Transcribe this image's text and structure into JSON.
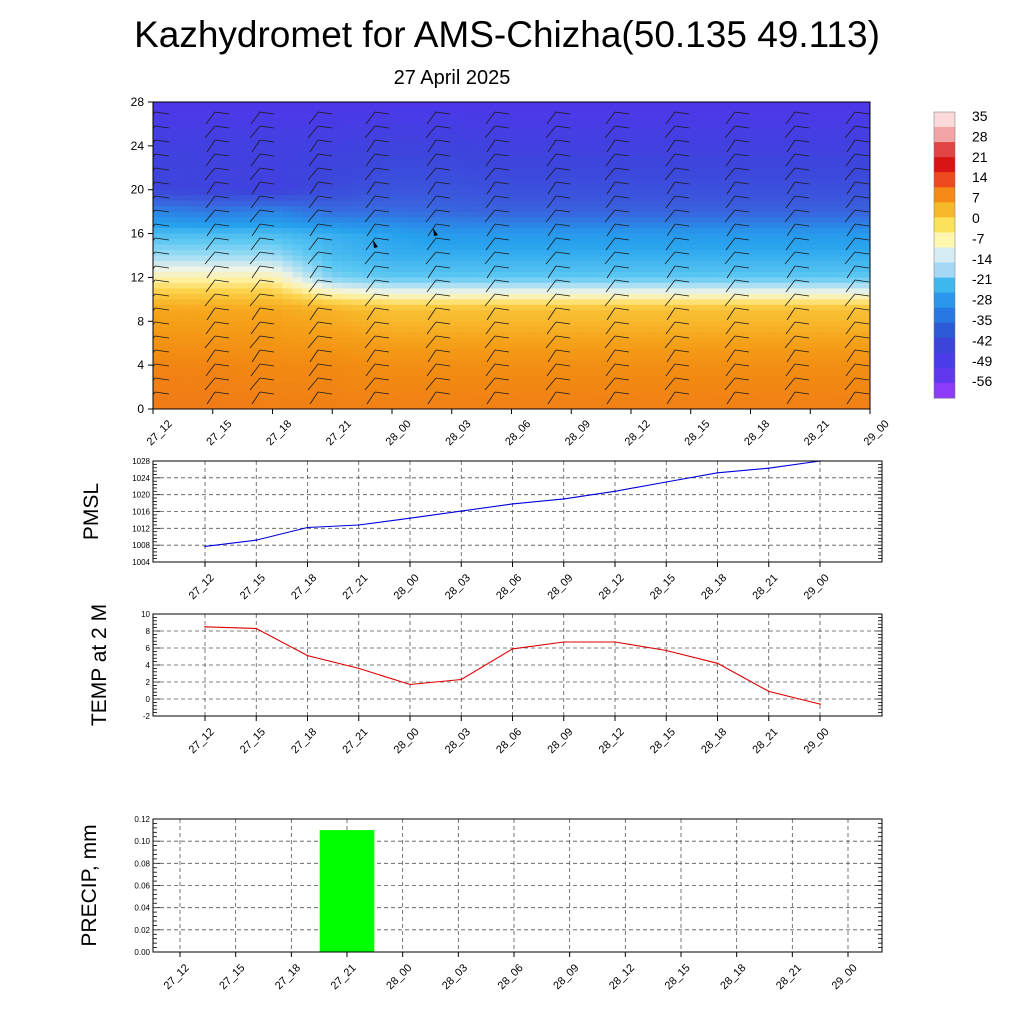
{
  "header": {
    "title": "Kazhydromet for AMS-Chizha(50.135 49.113)",
    "subtitle": "27 April 2025"
  },
  "colors": {
    "pmsl_line": "#0000dd",
    "temp_line": "#dd0000",
    "precip_bar": "#00ff00",
    "warm": "#f59a12",
    "cold": "#4a3ce0"
  },
  "chart_data": [
    {
      "type": "heatmap",
      "name": "cross-section",
      "x": [
        "27_12",
        "27_15",
        "27_18",
        "27_21",
        "28_00",
        "28_03",
        "28_06",
        "28_09",
        "28_12",
        "28_15",
        "28_18",
        "28_21",
        "29_00"
      ],
      "yticks": [
        "0",
        "4",
        "8",
        "12",
        "16",
        "20",
        "24",
        "28"
      ],
      "ylim": [
        0,
        28
      ],
      "colorbar": {
        "labels": [
          "35",
          "28",
          "21",
          "14",
          "7",
          "0",
          "-7",
          "-14",
          "-21",
          "-28",
          "-35",
          "-42",
          "-49",
          "-56"
        ],
        "colors": [
          "#fcdada",
          "#f3a4a4",
          "#e04444",
          "#d81414",
          "#ee4a1e",
          "#f58a16",
          "#f7b82c",
          "#fbe25a",
          "#fff6b0",
          "#d6ecf5",
          "#a4d8f5",
          "#3fb6ee",
          "#2a96ec",
          "#2878e4",
          "#2c5ad6",
          "#3c44da",
          "#4a3ce8",
          "#6038ee",
          "#8c3cf8"
        ],
        "ramp": [
          {
            "v": -60,
            "c": "#8c3cf8"
          },
          {
            "v": -53,
            "c": "#5034ec"
          },
          {
            "v": -46,
            "c": "#3c46dc"
          },
          {
            "v": -40,
            "c": "#3a62de"
          },
          {
            "v": -34,
            "c": "#2c84e6"
          },
          {
            "v": -28,
            "c": "#26a2ee"
          },
          {
            "v": -22,
            "c": "#5cc8f2"
          },
          {
            "v": -17,
            "c": "#aee0f4"
          },
          {
            "v": -13,
            "c": "#eef4e6"
          },
          {
            "v": -9,
            "c": "#fff0a0"
          },
          {
            "v": -5,
            "c": "#fcd24a"
          },
          {
            "v": -1,
            "c": "#f8b82c"
          },
          {
            "v": 3,
            "c": "#f5a018"
          },
          {
            "v": 8,
            "c": "#f28a12"
          },
          {
            "v": 14,
            "c": "#ee6a1c"
          }
        ]
      },
      "profile": {
        "heights": [
          0,
          4,
          8,
          9,
          12,
          14,
          16,
          18,
          20,
          24,
          28
        ],
        "values": [
          [
            11,
            9,
            3,
            2,
            -10,
            -18,
            -24,
            -34,
            -46,
            -48,
            -52
          ],
          [
            11,
            9,
            3,
            2,
            -10,
            -18,
            -24,
            -36,
            -47,
            -48,
            -52
          ],
          [
            10,
            8,
            3,
            2,
            -10,
            -18,
            -24,
            -34,
            -48,
            -48,
            -52
          ],
          [
            10,
            8,
            1,
            0,
            -20,
            -24,
            -26,
            -38,
            -45,
            -48,
            -52
          ],
          [
            10,
            7,
            -1,
            -2,
            -22,
            -26,
            -28,
            -38,
            -43,
            -47,
            -52
          ],
          [
            10,
            7,
            -1,
            -2,
            -22,
            -26,
            -30,
            -39,
            -43,
            -47,
            -52
          ],
          [
            10,
            7,
            -1,
            -2,
            -22,
            -26,
            -30,
            -40,
            -44,
            -48,
            -52
          ],
          [
            10,
            7,
            -1,
            -2,
            -22,
            -26,
            -30,
            -40,
            -44,
            -48,
            -52
          ],
          [
            10,
            7,
            -1,
            -2,
            -22,
            -26,
            -30,
            -40,
            -44,
            -48,
            -52
          ],
          [
            10,
            7,
            -1,
            -2,
            -22,
            -26,
            -30,
            -40,
            -44,
            -48,
            -52
          ],
          [
            10,
            7,
            -1,
            -2,
            -22,
            -26,
            -30,
            -40,
            -44,
            -48,
            -52
          ],
          [
            10,
            7,
            -1,
            -2,
            -22,
            -26,
            -30,
            -40,
            -44,
            -48,
            -52
          ],
          [
            10,
            7,
            -1,
            -2,
            -22,
            -26,
            -30,
            -40,
            -44,
            -48,
            -52
          ]
        ]
      }
    },
    {
      "type": "line",
      "name": "pmsl",
      "ylabel": "PMSL",
      "x": [
        "27_12",
        "27_15",
        "27_18",
        "27_21",
        "28_00",
        "28_03",
        "28_06",
        "28_09",
        "28_12",
        "28_15",
        "28_18",
        "28_21",
        "29_00"
      ],
      "values": [
        1007.7,
        1009.2,
        1012.2,
        1012.8,
        1014.4,
        1016.1,
        1017.8,
        1019.0,
        1020.8,
        1023.0,
        1025.2,
        1026.3,
        1028.0
      ],
      "ylim": [
        1004,
        1028
      ],
      "yticks": [
        "1004",
        "1008",
        "1012",
        "1016",
        "1020",
        "1024",
        "1028"
      ],
      "grid": true
    },
    {
      "type": "line",
      "name": "temp",
      "ylabel": "TEMP at 2 M",
      "x": [
        "27_12",
        "27_15",
        "27_18",
        "27_21",
        "28_00",
        "28_03",
        "28_06",
        "28_09",
        "28_12",
        "28_15",
        "28_18",
        "28_21",
        "29_00"
      ],
      "values": [
        8.5,
        8.3,
        5.1,
        3.6,
        1.7,
        2.3,
        5.9,
        6.7,
        6.7,
        5.7,
        4.2,
        0.9,
        -0.6
      ],
      "ylim": [
        -2,
        10
      ],
      "yticks": [
        "-2",
        "0",
        "2",
        "4",
        "6",
        "8",
        "10"
      ],
      "grid": true
    },
    {
      "type": "bar",
      "name": "precip",
      "ylabel": "PRECIP, mm",
      "x": [
        "27_12",
        "27_15",
        "27_18",
        "27_21",
        "28_00",
        "28_03",
        "28_06",
        "28_09",
        "28_12",
        "28_15",
        "28_18",
        "28_21",
        "29_00"
      ],
      "values": [
        0,
        0,
        0,
        0.11,
        0,
        0,
        0,
        0,
        0,
        0,
        0,
        0,
        0
      ],
      "ylim": [
        0,
        0.12
      ],
      "yticks": [
        "0.00",
        "0.02",
        "0.04",
        "0.06",
        "0.08",
        "0.10",
        "0.12"
      ],
      "grid": true
    }
  ]
}
